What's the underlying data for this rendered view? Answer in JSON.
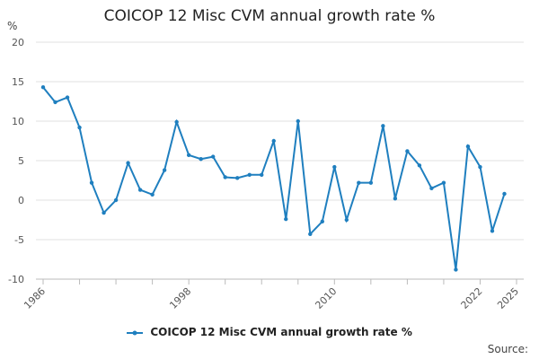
{
  "chart_data": {
    "type": "line",
    "title": "COICOP 12 Misc CVM annual growth rate %",
    "ylabel": "%",
    "xlabel": "",
    "ylim": [
      -10,
      20
    ],
    "yticks": [
      -10,
      -5,
      0,
      5,
      10,
      15,
      20
    ],
    "xlim": [
      1986,
      2025
    ],
    "xticks": [
      1986,
      1998,
      2010,
      2022,
      2025
    ],
    "xticks_minor": [
      1989,
      1992,
      1995,
      2001,
      2004,
      2007,
      2013,
      2016,
      2019
    ],
    "grid": true,
    "legend_position": "bottom",
    "series": [
      {
        "name": "COICOP 12 Misc CVM annual growth rate %",
        "color": "#1f7fbf",
        "x": [
          1986,
          1987,
          1988,
          1989,
          1990,
          1991,
          1992,
          1993,
          1994,
          1995,
          1996,
          1997,
          1998,
          1999,
          2000,
          2001,
          2002,
          2003,
          2004,
          2005,
          2006,
          2007,
          2008,
          2009,
          2010,
          2011,
          2012,
          2013,
          2014,
          2015,
          2016,
          2017,
          2018,
          2019,
          2020,
          2021,
          2022,
          2023
        ],
        "values": [
          14.3,
          12.4,
          13.0,
          9.2,
          2.2,
          -1.6,
          0.0,
          4.7,
          1.3,
          0.7,
          3.8,
          9.9,
          5.7,
          5.2,
          5.5,
          2.9,
          2.8,
          3.2,
          3.2,
          7.5,
          -2.4,
          10.0,
          -4.3,
          -2.7,
          4.2,
          -2.5,
          2.2,
          2.2,
          9.4,
          0.2,
          6.2,
          4.4,
          1.5,
          2.2,
          -8.8,
          6.8,
          4.2,
          -3.9
        ]
      }
    ],
    "last_point": {
      "x": 2024,
      "value": 0.8
    }
  },
  "legend": {
    "label": "COICOP 12 Misc CVM annual growth rate %"
  },
  "source": {
    "label": "Source:"
  }
}
